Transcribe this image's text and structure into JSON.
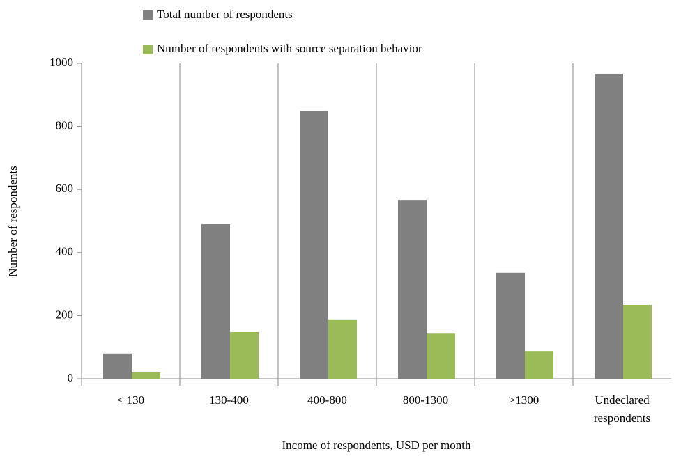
{
  "chart_data": {
    "type": "bar",
    "xlabel": "Income of respondents, USD per month",
    "ylabel": "Number of respondents",
    "categories": [
      "< 130",
      "130-400",
      "400-800",
      "800-1300",
      ">1300",
      "Undeclared respondents"
    ],
    "series": [
      {
        "name": "Total number of respondents",
        "color": "#808080",
        "values": [
          80,
          490,
          848,
          567,
          336,
          967
        ]
      },
      {
        "name": "Number of respondents with source separation behavior",
        "color": "#9bbb59",
        "values": [
          20,
          148,
          188,
          143,
          88,
          234
        ]
      }
    ],
    "ylim": [
      0,
      1000
    ],
    "yticks": [
      0,
      200,
      400,
      600,
      800,
      1000
    ]
  }
}
